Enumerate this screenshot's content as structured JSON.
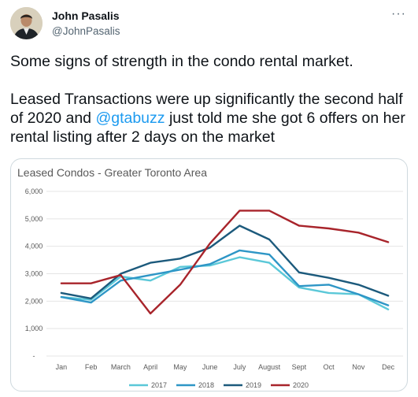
{
  "author": {
    "name": "John Pasalis",
    "handle": "@JohnPasalis"
  },
  "more_icon": "more-horizontal-icon",
  "tweet": {
    "line1": "Some signs of strength in the condo rental market.",
    "line2_before": "Leased Transactions were up significantly the second half of 2020 and ",
    "mention": "@gtabuzz",
    "line2_after": " just told me she got 6 offers on her rental listing after 2 days on the market"
  },
  "colors": {
    "mention": "#1d9bf0",
    "s2017": "#5bc8d8",
    "s2018": "#2e96c6",
    "s2019": "#1c5a7c",
    "s2020": "#a8242b"
  },
  "chart_data": {
    "type": "line",
    "title": "Leased Condos - Greater Toronto Area",
    "categories": [
      "Jan",
      "Feb",
      "March",
      "April",
      "May",
      "June",
      "July",
      "August",
      "Sept",
      "Oct",
      "Nov",
      "Dec"
    ],
    "yticks": [
      "-",
      "1,000",
      "2,000",
      "3,000",
      "4,000",
      "5,000",
      "6,000"
    ],
    "ylim": [
      0,
      6000
    ],
    "grid": true,
    "legend_position": "bottom",
    "series": [
      {
        "name": "2017",
        "color": "#5bc8d8",
        "values": [
          2150,
          2050,
          2900,
          2750,
          3250,
          3300,
          3600,
          3400,
          2500,
          2300,
          2250,
          1700
        ]
      },
      {
        "name": "2018",
        "color": "#2e96c6",
        "values": [
          2150,
          1950,
          2750,
          2950,
          3150,
          3350,
          3850,
          3700,
          2550,
          2600,
          2250,
          1850
        ]
      },
      {
        "name": "2019",
        "color": "#1c5a7c",
        "values": [
          2300,
          2100,
          3000,
          3400,
          3550,
          3950,
          4750,
          4250,
          3050,
          2850,
          2600,
          2200
        ]
      },
      {
        "name": "2020",
        "color": "#a8242b",
        "values": [
          2650,
          2650,
          2950,
          1550,
          2600,
          4100,
          5300,
          5300,
          4750,
          4650,
          4500,
          4150
        ]
      }
    ]
  }
}
